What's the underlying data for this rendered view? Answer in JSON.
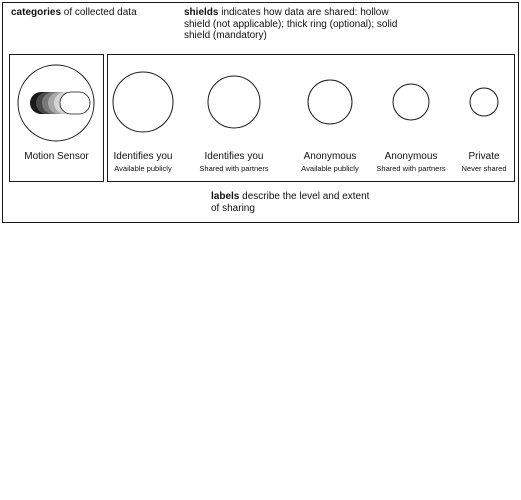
{
  "captions": {
    "categories": {
      "bold": "categories",
      "rest": " of collected data"
    },
    "shields": {
      "bold": "shields",
      "rest": " indicates how data are shared: hollow shield (not applicable); thick ring (optional); solid shield (mandatory)"
    },
    "labels": {
      "bold": "labels",
      "rest": " describe the level and extent of sharing"
    }
  },
  "category": {
    "label": "Motion Sensor",
    "icon": "motion-sensor-icon",
    "icon_shades": [
      "#1a1a1a",
      "#4a4a4a",
      "#7a7a7a",
      "#a8a8a8",
      "#d4d4d4",
      "#ffffff"
    ]
  },
  "shields": [
    {
      "main": "Identifies you",
      "sub": "Available publicly"
    },
    {
      "main": "Identifies you",
      "sub": "Shared with partners"
    },
    {
      "main": "Anonymous",
      "sub": "Available publicly"
    },
    {
      "main": "Anonymous",
      "sub": "Shared with partners"
    },
    {
      "main": "Private",
      "sub": "Never shared"
    }
  ],
  "colors": {
    "stroke": "#1a1a1a",
    "background": "#ffffff"
  }
}
